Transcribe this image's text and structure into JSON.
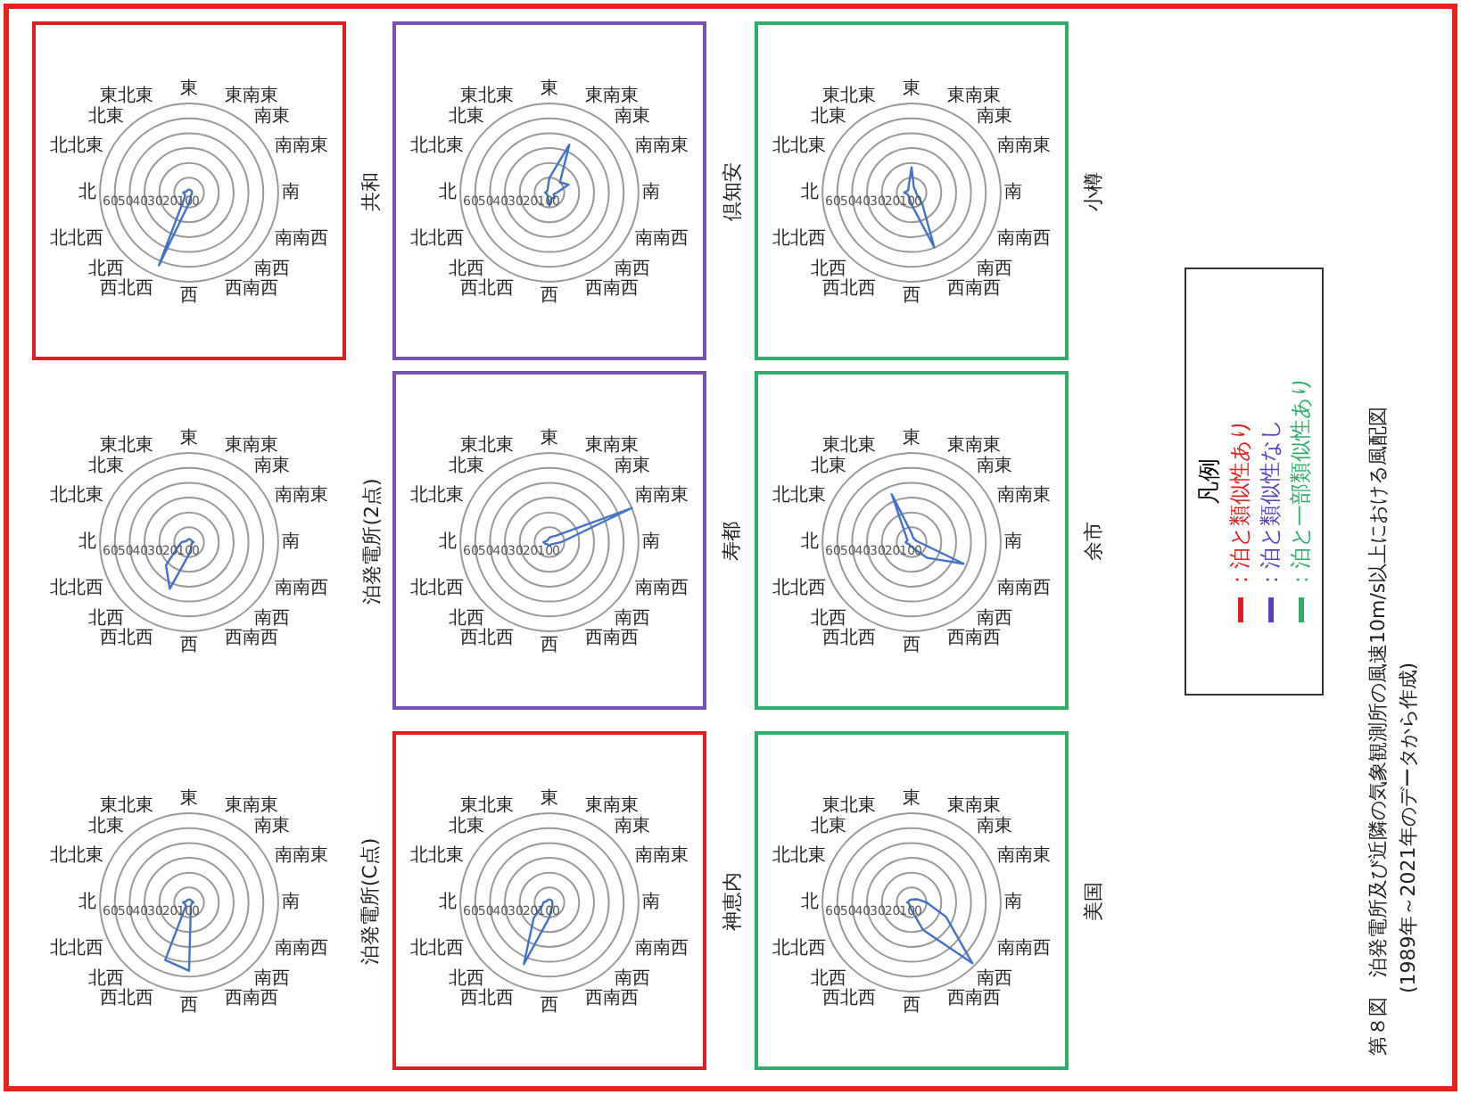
{
  "chart_data": [
    {
      "type": "radar",
      "title": "泊発電所(C点)",
      "categories": [
        "北",
        "北北東",
        "北東",
        "東北東",
        "東",
        "東南東",
        "南東",
        "南南東",
        "南",
        "南南西",
        "南西",
        "西南西",
        "西",
        "西北西",
        "北西",
        "北北西"
      ],
      "series": [
        {
          "color": "#4472c4",
          "values": [
            4,
            2,
            2,
            2,
            2,
            2,
            2,
            2,
            3,
            2,
            2,
            3,
            46,
            42,
            3,
            3
          ]
        }
      ],
      "ylim": [
        0,
        60
      ],
      "yticks": [
        0,
        10,
        20,
        30,
        40,
        50,
        60
      ],
      "grid": true
    },
    {
      "type": "radar",
      "title": "泊発電所(2点)",
      "categories": [
        "北",
        "北北東",
        "北東",
        "東北東",
        "東",
        "東南東",
        "南東",
        "南南東",
        "南",
        "南南西",
        "南西",
        "西南西",
        "西",
        "西北西",
        "北西",
        "北北西"
      ],
      "series": [
        {
          "color": "#4472c4",
          "values": [
            5,
            2,
            2,
            2,
            2,
            2,
            2,
            2,
            3,
            2,
            2,
            4,
            8,
            34,
            22,
            8
          ]
        }
      ],
      "ylim": [
        0,
        60
      ],
      "yticks": [
        0,
        10,
        20,
        30,
        40,
        50,
        60
      ],
      "grid": true
    },
    {
      "type": "radar",
      "title": "共和",
      "categories": [
        "北",
        "北北東",
        "北東",
        "東北東",
        "東",
        "東南東",
        "南東",
        "南南東",
        "南",
        "南南西",
        "南西",
        "西南西",
        "西",
        "西北西",
        "北西",
        "北北西"
      ],
      "series": [
        {
          "color": "#4472c4",
          "values": [
            4,
            2,
            2,
            2,
            2,
            2,
            2,
            2,
            2,
            2,
            2,
            3,
            7,
            53,
            4,
            3
          ]
        }
      ],
      "ylim": [
        0,
        60
      ],
      "yticks": [
        0,
        10,
        20,
        30,
        40,
        50,
        60
      ],
      "grid": true
    },
    {
      "type": "radar",
      "title": "神恵内",
      "categories": [
        "北",
        "北北東",
        "北東",
        "東北東",
        "東",
        "東南東",
        "南東",
        "南南東",
        "南",
        "南南西",
        "南西",
        "西南西",
        "西",
        "西北西",
        "北西",
        "北北西"
      ],
      "series": [
        {
          "color": "#4472c4",
          "values": [
            4,
            2,
            2,
            2,
            2,
            2,
            2,
            2,
            2,
            2,
            3,
            4,
            10,
            45,
            15,
            5
          ]
        }
      ],
      "ylim": [
        0,
        60
      ],
      "yticks": [
        0,
        10,
        20,
        30,
        40,
        50,
        60
      ],
      "grid": true
    },
    {
      "type": "radar",
      "title": "寿都",
      "categories": [
        "北",
        "北北東",
        "北東",
        "東北東",
        "東",
        "東南東",
        "南東",
        "南南東",
        "南",
        "南南西",
        "南西",
        "西南西",
        "西",
        "西北西",
        "北西",
        "北北西"
      ],
      "series": [
        {
          "color": "#4472c4",
          "values": [
            4,
            2,
            2,
            2,
            3,
            4,
            6,
            60,
            8,
            3,
            2,
            2,
            2,
            2,
            2,
            3
          ]
        }
      ],
      "ylim": [
        0,
        60
      ],
      "yticks": [
        0,
        10,
        20,
        30,
        40,
        50,
        60
      ],
      "grid": true
    },
    {
      "type": "radar",
      "title": "倶知安",
      "categories": [
        "北",
        "北北東",
        "北東",
        "東北東",
        "東",
        "東南東",
        "南東",
        "南南東",
        "南",
        "南南西",
        "南西",
        "西南西",
        "西",
        "西北西",
        "北西",
        "北北西"
      ],
      "series": [
        {
          "color": "#4472c4",
          "values": [
            3,
            2,
            2,
            3,
            10,
            35,
            10,
            14,
            5,
            3,
            5,
            4,
            9,
            3,
            2,
            2
          ]
        }
      ],
      "ylim": [
        0,
        60
      ],
      "yticks": [
        0,
        10,
        20,
        30,
        40,
        50,
        60
      ],
      "grid": true
    },
    {
      "type": "radar",
      "title": "美国",
      "categories": [
        "北",
        "北北東",
        "北東",
        "東北東",
        "東",
        "東南東",
        "南東",
        "南南東",
        "南",
        "南南西",
        "南西",
        "西南西",
        "西",
        "西北西",
        "北西",
        "北北西"
      ],
      "series": [
        {
          "color": "#4472c4",
          "values": [
            3,
            2,
            2,
            2,
            2,
            2,
            3,
            5,
            10,
            25,
            58,
            20,
            5,
            3,
            2,
            2
          ]
        }
      ],
      "ylim": [
        0,
        60
      ],
      "yticks": [
        0,
        10,
        20,
        30,
        40,
        50,
        60
      ],
      "grid": true
    },
    {
      "type": "radar",
      "title": "余市",
      "categories": [
        "北",
        "北北東",
        "北東",
        "東北東",
        "東",
        "東南東",
        "南東",
        "南南東",
        "南",
        "南南西",
        "南西",
        "西南西",
        "西",
        "西北西",
        "北西",
        "北北西"
      ],
      "series": [
        {
          "color": "#4472c4",
          "values": [
            4,
            3,
            5,
            35,
            6,
            3,
            3,
            3,
            5,
            38,
            15,
            5,
            3,
            3,
            2,
            3
          ]
        }
      ],
      "ylim": [
        0,
        60
      ],
      "yticks": [
        0,
        10,
        20,
        30,
        40,
        50,
        60
      ],
      "grid": true
    },
    {
      "type": "radar",
      "title": "小樽",
      "categories": [
        "北",
        "北北東",
        "北東",
        "東北東",
        "東",
        "東南東",
        "南東",
        "南南東",
        "南",
        "南南西",
        "南西",
        "西南西",
        "西",
        "西北西",
        "北西",
        "北北西"
      ],
      "series": [
        {
          "color": "#4472c4",
          "values": [
            5,
            3,
            3,
            5,
            17,
            4,
            3,
            3,
            3,
            4,
            10,
            40,
            8,
            4,
            3,
            3
          ]
        }
      ],
      "ylim": [
        0,
        60
      ],
      "yticks": [
        0,
        10,
        20,
        30,
        40,
        50,
        60
      ],
      "grid": true
    },
    {
      "type": "other",
      "title": "凡例",
      "annotations": [
        "：泊と類似性あり",
        "：泊と類似性なし",
        "：泊と一部類似性あり"
      ]
    },
    {
      "type": "other",
      "title": "第８図　泊発電所及び近隣の気象観測所の風速10m/s以上における風配図",
      "subtitle": "(1989年～2021年のデータから作成)"
    }
  ]
}
